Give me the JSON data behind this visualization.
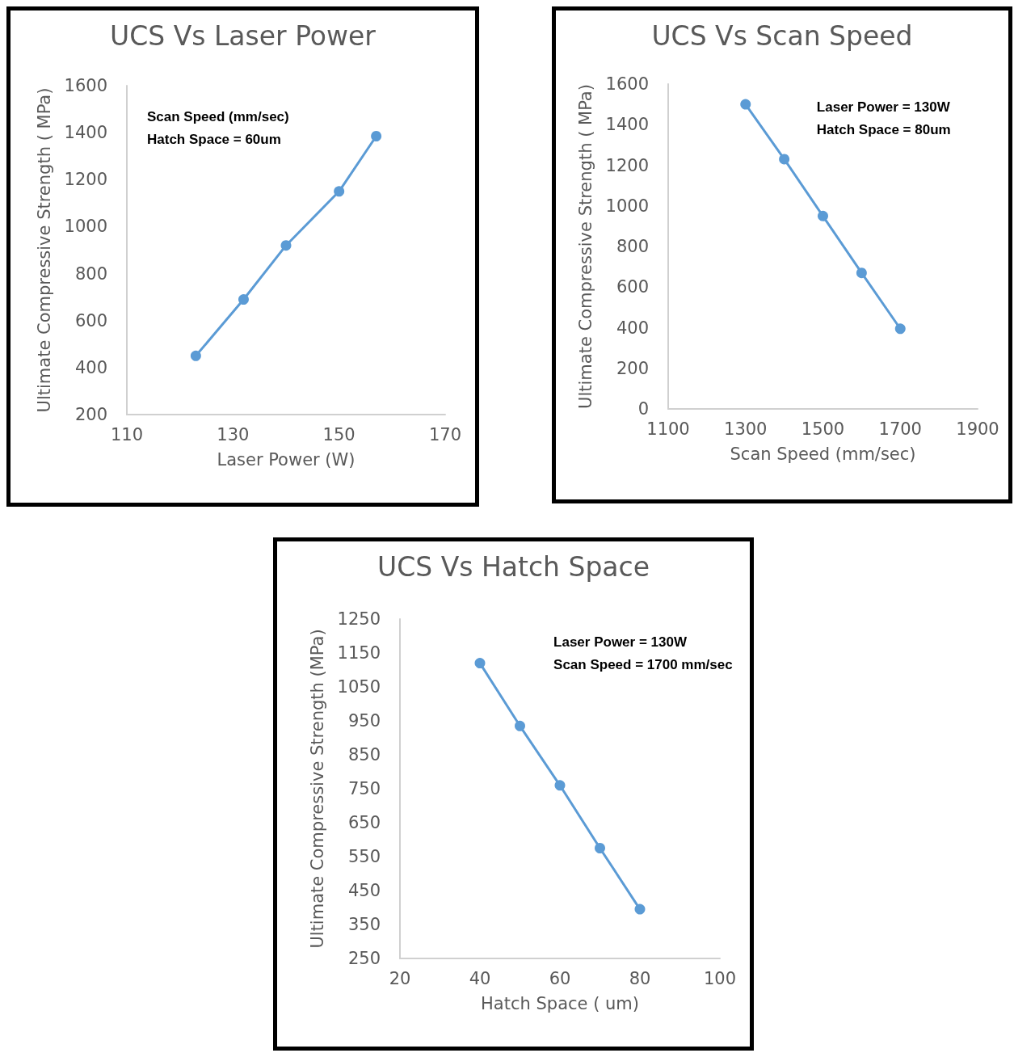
{
  "chart_data": [
    {
      "type": "line",
      "title": "UCS Vs Laser Power",
      "xlabel": "Laser Power (W)",
      "ylabel": "Ultimate Compressive Strength ( MPa)",
      "annotations": [
        "Scan Speed (mm/sec)",
        "Hatch Space = 60um"
      ],
      "series": [
        {
          "color": "#5b9bd5",
          "x": [
            123,
            132,
            140,
            150,
            157
          ],
          "values": [
            450,
            690,
            920,
            1150,
            1385
          ]
        }
      ],
      "xlim": [
        110,
        170
      ],
      "xticks": [
        110,
        130,
        150,
        170
      ],
      "ylim": [
        200,
        1600
      ],
      "yticks": [
        200,
        400,
        600,
        800,
        1000,
        1200,
        1400,
        1600
      ],
      "grid": false,
      "marker": "circle",
      "line_style": "solid"
    },
    {
      "type": "line",
      "title": "UCS Vs Scan Speed",
      "xlabel": "Scan Speed (mm/sec)",
      "ylabel": "Ultimate Compressive Strength ( MPa)",
      "annotations": [
        "Laser Power = 130W",
        "Hatch Space = 80um"
      ],
      "series": [
        {
          "color": "#5b9bd5",
          "x": [
            1300,
            1400,
            1500,
            1600,
            1700
          ],
          "values": [
            1500,
            1230,
            950,
            670,
            395
          ]
        }
      ],
      "xlim": [
        1100,
        1900
      ],
      "xticks": [
        1100,
        1300,
        1500,
        1700,
        1900
      ],
      "ylim": [
        0,
        1600
      ],
      "yticks": [
        0,
        200,
        400,
        600,
        800,
        1000,
        1200,
        1400,
        1600
      ],
      "grid": false,
      "marker": "circle",
      "line_style": "solid"
    },
    {
      "type": "line",
      "title": "UCS Vs Hatch Space",
      "xlabel": "Hatch Space ( um)",
      "ylabel": "Ultimate Compressive Strength (MPa)",
      "annotations": [
        "Laser Power = 130W",
        "Scan Speed = 1700 mm/sec"
      ],
      "series": [
        {
          "color": "#5b9bd5",
          "x": [
            40,
            50,
            60,
            70,
            80
          ],
          "values": [
            1120,
            935,
            760,
            575,
            395
          ]
        }
      ],
      "xlim": [
        20,
        100
      ],
      "xticks": [
        20,
        40,
        60,
        80,
        100
      ],
      "ylim": [
        250,
        1250
      ],
      "yticks": [
        250,
        350,
        450,
        550,
        650,
        750,
        850,
        950,
        1050,
        1150,
        1250
      ],
      "grid": false,
      "marker": "circle",
      "line_style": "solid"
    }
  ]
}
